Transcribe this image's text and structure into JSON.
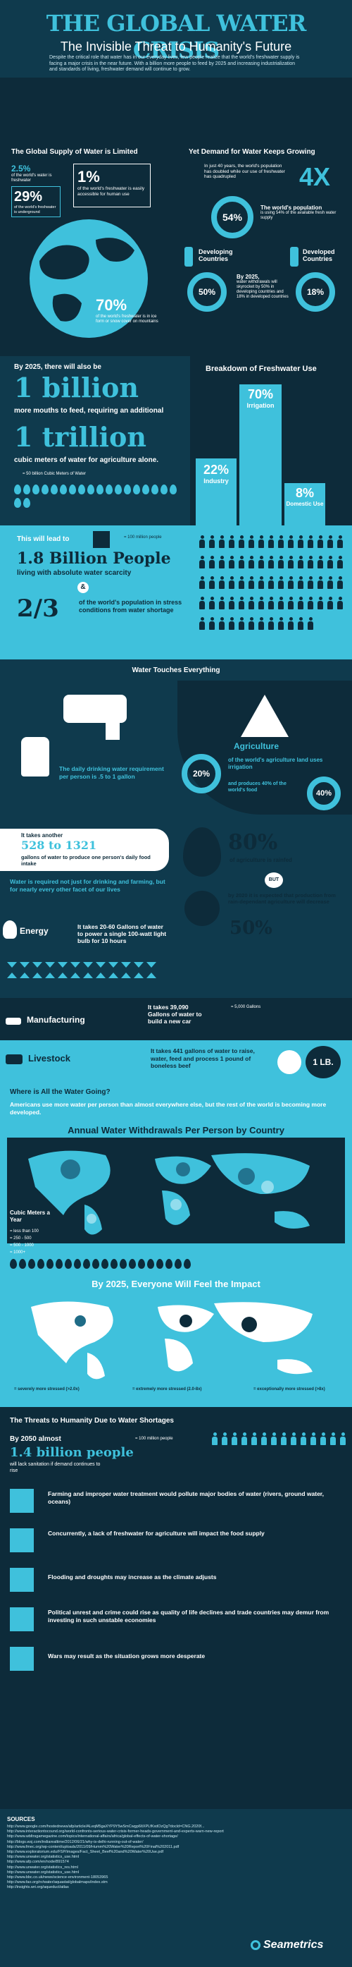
{
  "header": {
    "title": "THE GLOBAL WATER CRISIS",
    "subtitle": "The Invisible Threat to Humanity's Future",
    "intro": "Despite the critical role that water has in our everyday lives, few people realize that the world's freshwater supply is facing a major crisis in the near future. With a billion more people to feed by 2025 and increasing industrialization and standards of living, freshwater demand will continue to grow."
  },
  "supply": {
    "heading": "The Global Supply of Water is Limited",
    "fresh_pct": "2.5%",
    "fresh_text": "of the world's water is freshwater",
    "ground_pct": "29%",
    "ground_text": "of the world's freshwater is underground",
    "access_pct": "1%",
    "access_text": "of the world's freshwater is easily accessible for human use",
    "ice_pct": "70%",
    "ice_text": "of the world's freshwater is in ice form or snow cover on mountains"
  },
  "demand": {
    "heading": "Yet Demand for Water Keeps Growing",
    "text": "In just 40 years, the world's population has doubled while our use of freshwater has quadrupled",
    "big": "4X",
    "pop_pct": "54%",
    "pop_title": "The world's population",
    "pop_text": "is using 54% of the available fresh water supply",
    "developing": "Developing Countries",
    "developed": "Developed Countries",
    "dev_pct": "50%",
    "devd_pct": "18%",
    "year_2025": "By 2025,",
    "year_text": "water withdrawals will skyrocket by 50% in developing countries and 18% in developed countries"
  },
  "billion": {
    "lead": "By 2025, there will also be",
    "big1": "1 billion",
    "text1": "more mouths to feed, requiring an additional",
    "big2": "1 trillion",
    "text2": "cubic meters of water for agriculture alone.",
    "legend": "= 50 billion Cubic Meters of Water"
  },
  "breakdown": {
    "heading": "Breakdown of Freshwater Use",
    "irr_pct": "70%",
    "irr_label": "Irrigation",
    "ind_pct": "22%",
    "ind_label": "Industry",
    "dom_pct": "8%",
    "dom_label": "Domestic Use"
  },
  "scarcity": {
    "lead": "This will lead to",
    "legend": "= 100 million people",
    "big": "1.8 Billion People",
    "text": "living with absolute water scarcity",
    "amp": "&",
    "frac": "2/3",
    "frac_text": "of the world's population in stress conditions from water shortage"
  },
  "touches": {
    "heading": "Water Touches Everything",
    "drink_text": "The daily drinking water requirement per person is .5 to 1 gallon",
    "agri_title": "Agriculture",
    "agri_pct": "20%",
    "agri_text": "of the world's agriculture land uses irrigation",
    "agri_food": "and produces 40% of the world's food",
    "agri_pct2": "40%",
    "food_lead": "It takes another",
    "food_big": "528 to 1321",
    "food_text": "gallons of water to produce one person's daily food intake",
    "required": "Water is required not just for drinking and farming, but for nearly every other facet of our lives",
    "rain_pct": "80%",
    "rain_text": "of agriculture is rainfed",
    "but": "BUT",
    "rain_2020": "by 2020 it is expected that production from rain-dependant agriculture will decrease",
    "rain_pct2": "50%",
    "energy": "Energy",
    "energy_text": "It takes 20-60 Gallons of water to power a single 100-watt light bulb for 10 hours",
    "manu": "Manufacturing",
    "manu_text": "It takes 39,090 Gallons of water to build a new car",
    "manu_legend": "= 5,000 Gallons",
    "live": "Livestock",
    "live_text": "It takes 441 gallons of water to raise, water, feed and process 1 pound of boneless beef",
    "lb": "1 LB."
  },
  "going": {
    "heading": "Where is All the Water Going?",
    "text": "Americans use more water per person than almost everywhere else, but the rest of the world is becoming more developed.",
    "map_title": "Annual Water Withdrawals Per Person by Country",
    "legend_title": "Cubic Meters a Year",
    "legend": [
      "= less than 100",
      "= 250 - 500",
      "= 500 - 1000",
      "= 1000+"
    ],
    "impact_title": "By 2025, Everyone Will Feel the Impact",
    "stress": [
      "= severely more stressed (>2.0x)",
      "= extremely more stressed (2.0-8x)",
      "= exceptionally more stressed (>8x)"
    ]
  },
  "threats": {
    "heading": "The Threats to Humanity Due to Water Shortages",
    "lead": "By 2050 almost",
    "big": "1.4 billion people",
    "text": "will lack sanitation if demand continues to rise",
    "legend": "= 100 million people",
    "items": [
      "Farming and improper water treatment would pollute major bodies of water (rivers, ground water, oceans)",
      "Concurrently, a lack of freshwater for agriculture will impact the food supply",
      "Flooding and droughts may increase as the climate adjusts",
      "Political unrest and crime could rise as quality of life declines and trade countries may demur from investing in such unstable economies",
      "Wars may result as the situation grows more desperate"
    ]
  },
  "sources": {
    "heading": "SOURCES",
    "lines": [
      "http://www.google.com/hostednews/afp/article/ALeqM5gaXYP9Y5wSmCwgp6ItXPLfKxdOzQg?docId=CNG.2020f...",
      "http://www.interactiontocound.org/world-confronts-serious-water-crisis-former-heads-government-and-experts-warn-new-report",
      "http://www.wbltrsgamegazine.com/topics/international-affairs/africa/global-effects-of-water-shortage/",
      "http://blogs.wsj.com/indiarealtime/2012/06/21/why-is-delhi-running-out-of-water/",
      "http://www.fmec.org/wp-content/uploads/2011/09/Humm%20Water%20Report%20Final%202011.pdf",
      "http://www.exploratorium.edu/FSP/images/Fact_Sheet_Beef%20and%20Water%20Use.pdf",
      "http://www.unwater.org/statistics_use.html",
      "http://www.afp.com/en/node/891574",
      "http://www.unwater.org/statistics_res.html",
      "http://www.unwater.org/statistics_use.html",
      "http://www.bbc.co.uk/news/science-environment-18053965",
      "http://www.fao.org/nr/water/aquastat/globalmaps/index.stm",
      "http://insights.wri.org/aqueduct/atlas"
    ],
    "brand": "Seametrics"
  }
}
